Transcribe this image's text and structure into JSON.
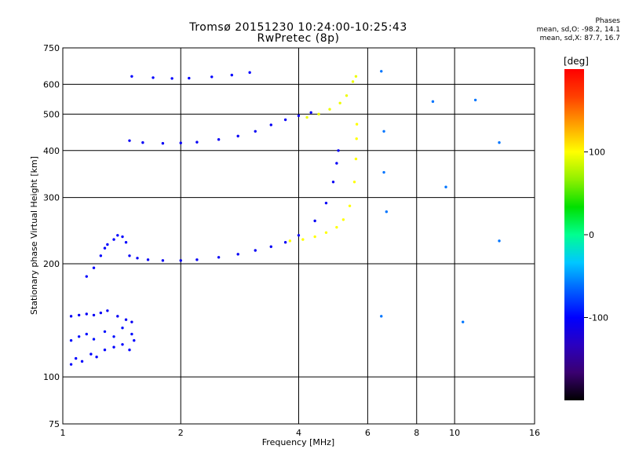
{
  "header": {
    "title_line1": "Tromsø 20151230 10:24:00-10:25:43",
    "title_line2": "RwPretec (8p)"
  },
  "stats": {
    "heading": "Phases",
    "line_o": "mean, sd,O: -98.2, 14.1",
    "line_x": "mean, sd,X:  87.7, 16.7"
  },
  "colorbar": {
    "unit_label": "[deg]",
    "ticks": [
      100,
      0,
      -100
    ],
    "range": [
      -200,
      200
    ],
    "palette": [
      "#000000",
      "#3a0070",
      "#2a00c0",
      "#0000ff",
      "#0060ff",
      "#00c8ff",
      "#00ff90",
      "#00e000",
      "#90f000",
      "#ffff00",
      "#ffa000",
      "#ff4000",
      "#ff0000"
    ]
  },
  "chart_data": {
    "type": "scatter",
    "title": "Tromsø 20151230 10:24:00-10:25:43",
    "subtitle": "RwPretec (8p)",
    "xlabel": "Frequency [MHz]",
    "ylabel": "Stationary phase Virtual Height [km]",
    "x_scale": "log",
    "y_scale": "log",
    "xlim": [
      1,
      16
    ],
    "ylim": [
      75,
      750
    ],
    "x_ticks": [
      1,
      2,
      4,
      6,
      8,
      10,
      16
    ],
    "y_ticks": [
      75,
      100,
      200,
      300,
      400,
      500,
      600,
      750
    ],
    "x_grid": [
      2,
      4,
      6,
      8,
      10
    ],
    "y_grid": [
      100,
      200,
      300,
      400,
      500,
      600
    ],
    "color_by": "phase [deg]",
    "series": [
      {
        "points": [
          [
            1.05,
            108
          ],
          [
            1.08,
            112
          ],
          [
            1.12,
            110
          ],
          [
            1.18,
            115
          ],
          [
            1.22,
            113
          ],
          [
            1.28,
            118
          ],
          [
            1.35,
            120
          ],
          [
            1.42,
            122
          ],
          [
            1.48,
            118
          ],
          [
            1.52,
            125
          ]
        ],
        "phase": -100
      },
      {
        "points": [
          [
            1.05,
            125
          ],
          [
            1.1,
            128
          ],
          [
            1.15,
            130
          ],
          [
            1.2,
            126
          ],
          [
            1.28,
            132
          ],
          [
            1.35,
            128
          ],
          [
            1.42,
            135
          ],
          [
            1.5,
            130
          ]
        ],
        "phase": -95
      },
      {
        "points": [
          [
            1.05,
            145
          ],
          [
            1.1,
            146
          ],
          [
            1.15,
            147
          ],
          [
            1.2,
            146
          ],
          [
            1.25,
            148
          ],
          [
            1.3,
            150
          ],
          [
            1.38,
            145
          ],
          [
            1.45,
            142
          ],
          [
            1.5,
            140
          ]
        ],
        "phase": -105
      },
      {
        "points": [
          [
            1.15,
            185
          ],
          [
            1.2,
            195
          ],
          [
            1.25,
            210
          ],
          [
            1.28,
            220
          ],
          [
            1.3,
            225
          ],
          [
            1.35,
            232
          ],
          [
            1.38,
            238
          ],
          [
            1.42,
            236
          ],
          [
            1.45,
            228
          ]
        ],
        "phase": -100
      },
      {
        "points": [
          [
            1.48,
            210
          ],
          [
            1.55,
            207
          ],
          [
            1.65,
            205
          ],
          [
            1.8,
            204
          ],
          [
            2.0,
            204
          ],
          [
            2.2,
            205
          ],
          [
            2.5,
            208
          ],
          [
            2.8,
            212
          ],
          [
            3.1,
            217
          ],
          [
            3.4,
            222
          ],
          [
            3.7,
            228
          ],
          [
            4.0,
            238
          ],
          [
            4.4,
            260
          ],
          [
            4.7,
            290
          ],
          [
            4.9,
            330
          ],
          [
            5.0,
            370
          ],
          [
            5.05,
            400
          ]
        ],
        "phase": -105
      },
      {
        "points": [
          [
            3.8,
            230
          ],
          [
            4.1,
            232
          ],
          [
            4.4,
            236
          ],
          [
            4.7,
            242
          ],
          [
            5.0,
            250
          ],
          [
            5.2,
            262
          ],
          [
            5.4,
            285
          ],
          [
            5.55,
            330
          ],
          [
            5.6,
            380
          ],
          [
            5.62,
            430
          ],
          [
            5.63,
            470
          ]
        ],
        "phase": 100
      },
      {
        "points": [
          [
            1.48,
            425
          ],
          [
            1.6,
            420
          ],
          [
            1.8,
            418
          ],
          [
            2.0,
            419
          ],
          [
            2.2,
            421
          ],
          [
            2.5,
            428
          ],
          [
            2.8,
            437
          ],
          [
            3.1,
            450
          ],
          [
            3.4,
            468
          ],
          [
            3.7,
            483
          ],
          [
            4.0,
            495
          ],
          [
            4.3,
            505
          ]
        ],
        "phase": -105
      },
      {
        "points": [
          [
            4.2,
            490
          ],
          [
            4.5,
            500
          ],
          [
            4.8,
            515
          ],
          [
            5.1,
            535
          ],
          [
            5.3,
            560
          ],
          [
            5.5,
            610
          ],
          [
            5.6,
            630
          ]
        ],
        "phase": 95
      },
      {
        "points": [
          [
            1.5,
            630
          ],
          [
            1.7,
            625
          ],
          [
            1.9,
            622
          ],
          [
            2.1,
            623
          ],
          [
            2.4,
            628
          ],
          [
            2.7,
            635
          ],
          [
            3.0,
            645
          ]
        ],
        "phase": -100
      },
      {
        "points": [
          [
            6.5,
            650
          ],
          [
            6.6,
            450
          ],
          [
            6.6,
            350
          ],
          [
            6.7,
            275
          ],
          [
            6.5,
            145
          ],
          [
            9.5,
            320
          ],
          [
            10.5,
            140
          ],
          [
            13,
            420
          ],
          [
            8.8,
            540
          ],
          [
            11.3,
            545
          ],
          [
            13,
            230
          ]
        ],
        "phase": -60
      }
    ]
  }
}
